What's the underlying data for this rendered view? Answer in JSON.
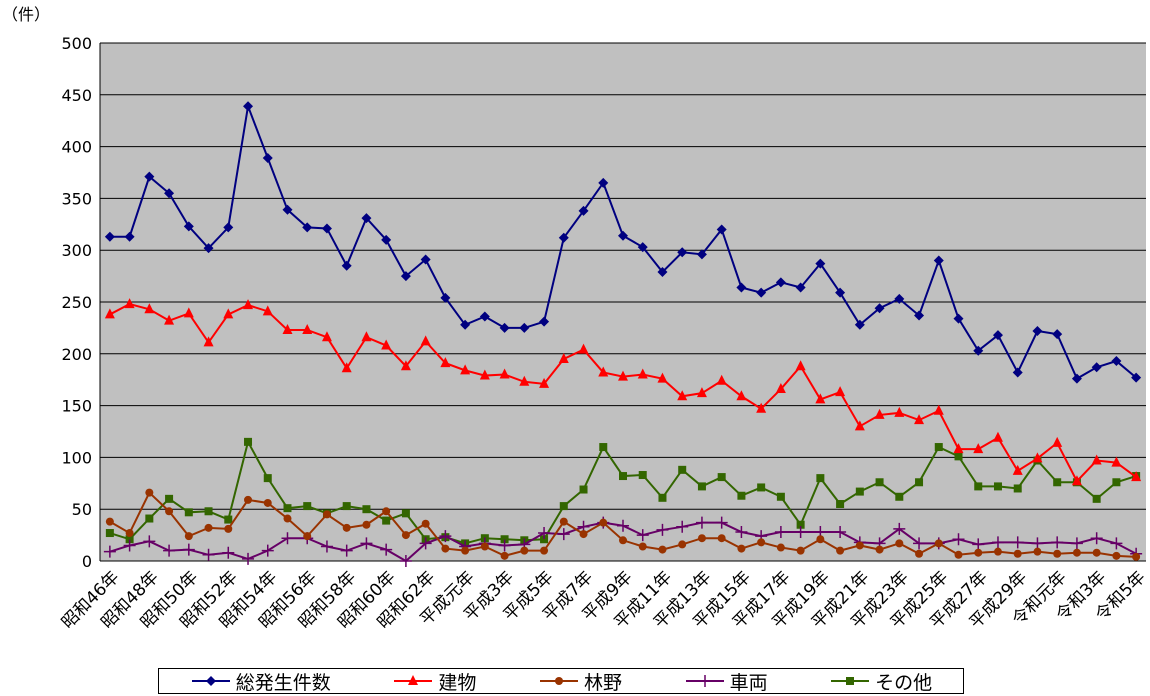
{
  "chart_data": {
    "type": "line",
    "unit_label": "（件）",
    "ylim": [
      0,
      500
    ],
    "yticks": [
      "0",
      "50",
      "100",
      "150",
      "200",
      "250",
      "300",
      "350",
      "400",
      "450",
      "500"
    ],
    "grid": true,
    "legend_position": "bottom",
    "categories": [
      "昭和46年",
      "昭和47年",
      "昭和48年",
      "昭和49年",
      "昭和50年",
      "昭和51年",
      "昭和52年",
      "昭和53年",
      "昭和54年",
      "昭和55年",
      "昭和56年",
      "昭和57年",
      "昭和58年",
      "昭和59年",
      "昭和60年",
      "昭和61年",
      "昭和62年",
      "昭和63年",
      "平成元年",
      "平成2年",
      "平成3年",
      "平成4年",
      "平成5年",
      "平成6年",
      "平成7年",
      "平成8年",
      "平成9年",
      "平成10年",
      "平成11年",
      "平成12年",
      "平成13年",
      "平成14年",
      "平成15年",
      "平成16年",
      "平成17年",
      "平成18年",
      "平成19年",
      "平成20年",
      "平成21年",
      "平成22年",
      "平成23年",
      "平成24年",
      "平成25年",
      "平成26年",
      "平成27年",
      "平成28年",
      "平成29年",
      "平成30年",
      "令和元年",
      "令和2年",
      "令和3年",
      "令和4年",
      "令和5年"
    ],
    "shown_labels": [
      "昭和46年",
      "昭和48年",
      "昭和50年",
      "昭和52年",
      "昭和54年",
      "昭和56年",
      "昭和58年",
      "昭和60年",
      "昭和62年",
      "平成元年",
      "平成3年",
      "平成5年",
      "平成7年",
      "平成9年",
      "平成11年",
      "平成13年",
      "平成15年",
      "平成17年",
      "平成19年",
      "平成21年",
      "平成23年",
      "平成25年",
      "平成27年",
      "平成29年",
      "令和元年",
      "令和3年",
      "令和5年"
    ],
    "series": [
      {
        "name": "総発生件数",
        "color": "#000080",
        "marker": "diamond",
        "values": [
          313,
          313,
          371,
          355,
          323,
          302,
          322,
          439,
          389,
          339,
          322,
          321,
          285,
          331,
          310,
          275,
          291,
          254,
          228,
          236,
          225,
          225,
          231,
          312,
          338,
          365,
          314,
          303,
          279,
          298,
          296,
          320,
          264,
          259,
          269,
          264,
          287,
          259,
          228,
          244,
          253,
          237,
          290,
          234,
          203,
          218,
          182,
          222,
          219,
          176,
          187,
          193,
          177
        ]
      },
      {
        "name": "建物",
        "color": "#ff0000",
        "marker": "triangle",
        "values": [
          238,
          248,
          243,
          232,
          239,
          211,
          238,
          247,
          241,
          223,
          223,
          216,
          186,
          216,
          208,
          188,
          212,
          191,
          184,
          179,
          180,
          173,
          171,
          195,
          204,
          182,
          178,
          180,
          176,
          159,
          162,
          174,
          159,
          147,
          166,
          188,
          156,
          163,
          130,
          141,
          143,
          136,
          145,
          108,
          108,
          119,
          87,
          99,
          114,
          77,
          97,
          95,
          81
        ]
      },
      {
        "name": "林野",
        "color": "#993300",
        "marker": "circle",
        "values": [
          38,
          27,
          66,
          48,
          24,
          32,
          31,
          59,
          56,
          41,
          24,
          45,
          32,
          35,
          48,
          25,
          36,
          12,
          10,
          14,
          5,
          10,
          10,
          38,
          26,
          37,
          20,
          14,
          11,
          16,
          22,
          22,
          12,
          18,
          13,
          10,
          21,
          10,
          15,
          11,
          17,
          7,
          17,
          6,
          8,
          9,
          7,
          9,
          7,
          8,
          8,
          5,
          4
        ]
      },
      {
        "name": "車両",
        "color": "#660066",
        "marker": "plus",
        "values": [
          9,
          15,
          19,
          10,
          11,
          6,
          8,
          2,
          10,
          22,
          22,
          14,
          10,
          17,
          11,
          0,
          17,
          24,
          14,
          17,
          15,
          16,
          27,
          26,
          33,
          37,
          34,
          25,
          30,
          33,
          37,
          37,
          28,
          24,
          28,
          28,
          28,
          28,
          18,
          17,
          31,
          17,
          17,
          21,
          16,
          18,
          18,
          17,
          18,
          17,
          22,
          17,
          7
        ]
      },
      {
        "name": "その他",
        "color": "#336600",
        "marker": "square",
        "values": [
          27,
          21,
          41,
          60,
          47,
          48,
          40,
          115,
          80,
          51,
          53,
          46,
          53,
          50,
          39,
          46,
          21,
          23,
          17,
          22,
          21,
          20,
          21,
          53,
          69,
          110,
          82,
          83,
          61,
          88,
          72,
          81,
          63,
          71,
          62,
          35,
          80,
          55,
          67,
          76,
          62,
          76,
          110,
          101,
          72,
          72,
          70,
          97,
          76,
          76,
          60,
          76,
          82
        ]
      }
    ]
  }
}
